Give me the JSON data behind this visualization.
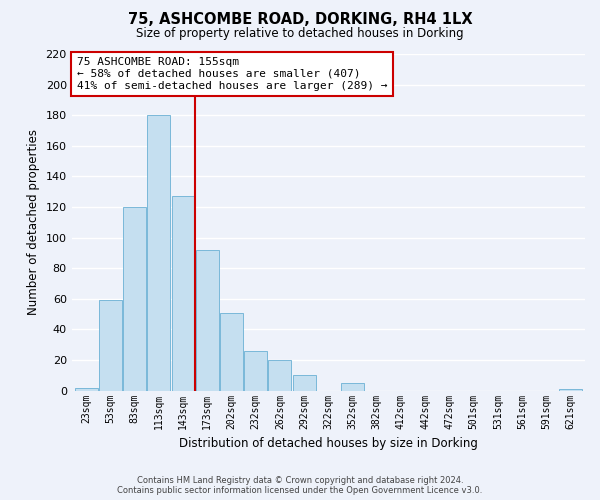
{
  "title": "75, ASHCOMBE ROAD, DORKING, RH4 1LX",
  "subtitle": "Size of property relative to detached houses in Dorking",
  "xlabel": "Distribution of detached houses by size in Dorking",
  "ylabel": "Number of detached properties",
  "bar_color": "#c5dff0",
  "bar_edge_color": "#7ab8d9",
  "background_color": "#eef2fa",
  "grid_color": "#ffffff",
  "annotation_box_edge": "#cc0000",
  "property_line_color": "#cc0000",
  "categories": [
    "23sqm",
    "53sqm",
    "83sqm",
    "113sqm",
    "143sqm",
    "173sqm",
    "202sqm",
    "232sqm",
    "262sqm",
    "292sqm",
    "322sqm",
    "352sqm",
    "382sqm",
    "412sqm",
    "442sqm",
    "472sqm",
    "501sqm",
    "531sqm",
    "561sqm",
    "591sqm",
    "621sqm"
  ],
  "values": [
    2,
    59,
    120,
    180,
    127,
    92,
    51,
    26,
    20,
    10,
    0,
    5,
    0,
    0,
    0,
    0,
    0,
    0,
    0,
    0,
    1
  ],
  "ylim": [
    0,
    220
  ],
  "yticks": [
    0,
    20,
    40,
    60,
    80,
    100,
    120,
    140,
    160,
    180,
    200,
    220
  ],
  "property_label": "75 ASHCOMBE ROAD: 155sqm",
  "annotation_line1": "← 58% of detached houses are smaller (407)",
  "annotation_line2": "41% of semi-detached houses are larger (289) →",
  "footer_line1": "Contains HM Land Registry data © Crown copyright and database right 2024.",
  "footer_line2": "Contains public sector information licensed under the Open Government Licence v3.0.",
  "property_bin_index": 4
}
